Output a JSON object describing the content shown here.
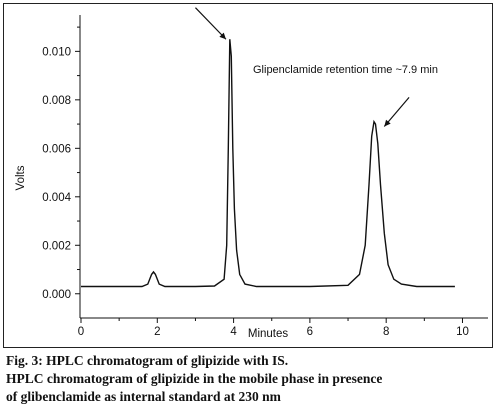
{
  "chart_data": {
    "type": "line",
    "title": "",
    "xlabel": "Minutes",
    "ylabel": "Volts",
    "xlim": [
      0,
      10
    ],
    "ylim": [
      -0.001,
      0.0115
    ],
    "grid": false,
    "x_ticks": [
      0,
      2,
      4,
      6,
      8,
      10
    ],
    "x_tick_labels": [
      "0",
      "2",
      "4",
      "6",
      "8",
      "10"
    ],
    "y_ticks": [
      0.0,
      0.002,
      0.004,
      0.006,
      0.008,
      0.01
    ],
    "y_tick_labels": [
      "0.000",
      "0.002",
      "0.004",
      "0.006",
      "0.008",
      "0.010"
    ],
    "series": [
      {
        "x": [
          0.0,
          1.0,
          1.6,
          1.75,
          1.85,
          1.9,
          1.95,
          2.05,
          2.2,
          2.5,
          3.0,
          3.5,
          3.75,
          3.82,
          3.86,
          3.9,
          3.94,
          3.98,
          4.02,
          4.08,
          4.16,
          4.3,
          4.6,
          5.0,
          6.0,
          7.0,
          7.3,
          7.45,
          7.55,
          7.62,
          7.68,
          7.72,
          7.78,
          7.85,
          7.95,
          8.05,
          8.2,
          8.4,
          8.8,
          9.5,
          9.8
        ],
        "y": [
          0.0003,
          0.0003,
          0.0003,
          0.0004,
          0.0008,
          0.0009,
          0.0008,
          0.0004,
          0.0003,
          0.0003,
          0.0003,
          0.00032,
          0.0006,
          0.002,
          0.006,
          0.0105,
          0.0098,
          0.006,
          0.0035,
          0.0018,
          0.0008,
          0.0004,
          0.0003,
          0.0003,
          0.0003,
          0.00035,
          0.0008,
          0.002,
          0.0045,
          0.0065,
          0.0071,
          0.007,
          0.0062,
          0.0045,
          0.0025,
          0.0012,
          0.0006,
          0.0004,
          0.0003,
          0.0003,
          0.0003
        ]
      }
    ],
    "annotations": [
      {
        "text": "Glipenclamide retention time ~7.9 min",
        "x": 7.7,
        "y": 0.0101
      }
    ],
    "arrows": [
      {
        "from": [
          3.0,
          0.0118
        ],
        "to": [
          3.8,
          0.0105
        ]
      },
      {
        "from": [
          8.6,
          0.0081
        ],
        "to": [
          7.95,
          0.0069
        ]
      }
    ]
  },
  "caption": {
    "line1": "Fig. 3: HPLC chromatogram of glipizide with IS.",
    "line2": "HPLC chromatogram of glipizide in the mobile phase in presence",
    "line3": "of glibenclamide as internal standard at 230 nm"
  },
  "colors": {
    "trace": "#111111",
    "axis": "#111111"
  }
}
